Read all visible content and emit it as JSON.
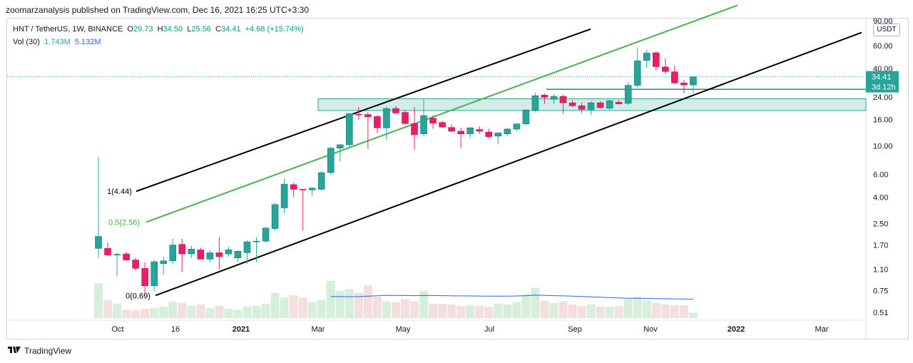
{
  "header": {
    "published_by": "zoomarzanalysis published on TradingView.com, Dec 16, 2021 16:25 UTC+3:30"
  },
  "legend": {
    "symbol": "HNT / TetherUS, 1W, BINANCE",
    "open_label": "O",
    "open": "29.73",
    "high_label": "H",
    "high": "34.50",
    "low_label": "L",
    "low": "25.56",
    "close_label": "C",
    "close": "34.41",
    "change": "+4.68 (+15.74%)",
    "vol_label": "Vol (30)",
    "vol_value": "1.743M",
    "vol_ma": "5.132M"
  },
  "price_axis": {
    "currency": "USDT",
    "last_price": "34.41",
    "countdown": "3d 12h"
  },
  "footer": {
    "brand": "TradingView"
  },
  "colors": {
    "up": "#26a69a",
    "down": "#ef5350",
    "down_body": "#e91e63",
    "channel_green": "#4caf50",
    "channel_black": "#000000",
    "zone_fill": "#b2dfdb",
    "vol_ma_line": "#2962ff"
  },
  "chart_data": {
    "type": "candlestick",
    "title": "HNT / TetherUS, 1W, BINANCE",
    "scale": "log",
    "ylim": [
      0.5,
      90
    ],
    "y_ticks": [
      "90.00",
      "60.00",
      "40.00",
      "24.00",
      "16.00",
      "10.00",
      "6.00",
      "4.00",
      "2.50",
      "1.70",
      "1.10",
      "0.75",
      "0.51"
    ],
    "x_ticks": [
      {
        "label": "Oct",
        "bold": false
      },
      {
        "label": "16",
        "bold": false
      },
      {
        "label": "2021",
        "bold": true
      },
      {
        "label": "Mar",
        "bold": false
      },
      {
        "label": "May",
        "bold": false
      },
      {
        "label": "Jul",
        "bold": false
      },
      {
        "label": "Sep",
        "bold": false
      },
      {
        "label": "Nov",
        "bold": false
      },
      {
        "label": "2022",
        "bold": true
      },
      {
        "label": "Mar",
        "bold": false
      }
    ],
    "candles": [
      {
        "o": 1.6,
        "h": 8.2,
        "l": 1.35,
        "c": 1.98
      },
      {
        "o": 1.6,
        "h": 1.78,
        "l": 1.4,
        "c": 1.42
      },
      {
        "o": 1.43,
        "h": 1.48,
        "l": 0.97,
        "c": 1.44
      },
      {
        "o": 1.45,
        "h": 1.5,
        "l": 1.28,
        "c": 1.3
      },
      {
        "o": 1.3,
        "h": 1.35,
        "l": 1.08,
        "c": 1.12
      },
      {
        "o": 1.12,
        "h": 1.25,
        "l": 0.69,
        "c": 0.82
      },
      {
        "o": 0.82,
        "h": 1.3,
        "l": 0.75,
        "c": 1.26
      },
      {
        "o": 1.22,
        "h": 1.38,
        "l": 1.0,
        "c": 1.28
      },
      {
        "o": 1.28,
        "h": 1.9,
        "l": 1.2,
        "c": 1.7
      },
      {
        "o": 1.72,
        "h": 1.9,
        "l": 1.05,
        "c": 1.45
      },
      {
        "o": 1.45,
        "h": 1.68,
        "l": 1.35,
        "c": 1.58
      },
      {
        "o": 1.56,
        "h": 1.62,
        "l": 1.38,
        "c": 1.32
      },
      {
        "o": 1.32,
        "h": 1.55,
        "l": 1.25,
        "c": 1.48
      },
      {
        "o": 1.48,
        "h": 1.95,
        "l": 1.1,
        "c": 1.38
      },
      {
        "o": 1.45,
        "h": 1.65,
        "l": 1.38,
        "c": 1.56
      },
      {
        "o": 1.35,
        "h": 1.55,
        "l": 1.25,
        "c": 1.52
      },
      {
        "o": 1.48,
        "h": 1.85,
        "l": 1.22,
        "c": 1.8
      },
      {
        "o": 1.8,
        "h": 1.95,
        "l": 1.25,
        "c": 1.82
      },
      {
        "o": 1.82,
        "h": 2.35,
        "l": 1.78,
        "c": 2.3
      },
      {
        "o": 2.28,
        "h": 3.6,
        "l": 2.2,
        "c": 3.5
      },
      {
        "o": 3.3,
        "h": 5.6,
        "l": 3.0,
        "c": 5.05
      },
      {
        "o": 5.0,
        "h": 5.2,
        "l": 4.0,
        "c": 4.6
      },
      {
        "o": 4.6,
        "h": 4.65,
        "l": 2.2,
        "c": 4.55
      },
      {
        "o": 4.55,
        "h": 4.8,
        "l": 4.1,
        "c": 4.7
      },
      {
        "o": 4.6,
        "h": 6.4,
        "l": 4.5,
        "c": 6.2
      },
      {
        "o": 6.2,
        "h": 9.8,
        "l": 6.0,
        "c": 9.6
      },
      {
        "o": 9.6,
        "h": 10.4,
        "l": 7.6,
        "c": 10.2
      },
      {
        "o": 10.2,
        "h": 18.0,
        "l": 9.8,
        "c": 17.8
      },
      {
        "o": 17.6,
        "h": 20.0,
        "l": 16.0,
        "c": 17.5
      },
      {
        "o": 17.5,
        "h": 18.2,
        "l": 9.5,
        "c": 16.8
      },
      {
        "o": 16.9,
        "h": 17.4,
        "l": 12.6,
        "c": 13.8
      },
      {
        "o": 13.8,
        "h": 20.2,
        "l": 11.0,
        "c": 19.5
      },
      {
        "o": 19.5,
        "h": 20.4,
        "l": 17.6,
        "c": 18.0
      },
      {
        "o": 18.2,
        "h": 19.0,
        "l": 14.6,
        "c": 14.9
      },
      {
        "o": 14.9,
        "h": 20.0,
        "l": 9.3,
        "c": 12.2
      },
      {
        "o": 12.4,
        "h": 23.0,
        "l": 11.8,
        "c": 17.2
      },
      {
        "o": 16.4,
        "h": 17.2,
        "l": 13.6,
        "c": 15.0
      },
      {
        "o": 15.2,
        "h": 15.6,
        "l": 13.8,
        "c": 14.0
      },
      {
        "o": 13.9,
        "h": 14.6,
        "l": 12.8,
        "c": 13.0
      },
      {
        "o": 13.0,
        "h": 13.8,
        "l": 9.6,
        "c": 12.4
      },
      {
        "o": 12.4,
        "h": 14.0,
        "l": 11.5,
        "c": 13.8
      },
      {
        "o": 13.4,
        "h": 14.2,
        "l": 12.4,
        "c": 13.0
      },
      {
        "o": 12.8,
        "h": 13.6,
        "l": 11.4,
        "c": 11.8
      },
      {
        "o": 11.9,
        "h": 12.8,
        "l": 10.4,
        "c": 12.6
      },
      {
        "o": 12.4,
        "h": 13.8,
        "l": 11.9,
        "c": 13.5
      },
      {
        "o": 13.5,
        "h": 15.0,
        "l": 13.0,
        "c": 14.8
      },
      {
        "o": 14.8,
        "h": 19.2,
        "l": 14.4,
        "c": 19.0
      },
      {
        "o": 19.0,
        "h": 25.8,
        "l": 18.2,
        "c": 24.5
      },
      {
        "o": 24.8,
        "h": 25.4,
        "l": 21.2,
        "c": 23.8
      },
      {
        "o": 23.0,
        "h": 25.2,
        "l": 21.2,
        "c": 24.2
      },
      {
        "o": 24.2,
        "h": 25.0,
        "l": 17.8,
        "c": 21.6
      },
      {
        "o": 21.6,
        "h": 22.6,
        "l": 20.0,
        "c": 20.5
      },
      {
        "o": 20.5,
        "h": 21.8,
        "l": 18.0,
        "c": 19.2
      },
      {
        "o": 19.1,
        "h": 22.2,
        "l": 17.4,
        "c": 21.6
      },
      {
        "o": 21.6,
        "h": 22.2,
        "l": 19.4,
        "c": 19.8
      },
      {
        "o": 19.6,
        "h": 22.8,
        "l": 19.0,
        "c": 22.4
      },
      {
        "o": 21.8,
        "h": 22.6,
        "l": 21.0,
        "c": 21.2
      },
      {
        "o": 21.4,
        "h": 31.2,
        "l": 20.8,
        "c": 29.5
      },
      {
        "o": 29.5,
        "h": 57.8,
        "l": 28.4,
        "c": 45.8
      },
      {
        "o": 46.0,
        "h": 55.4,
        "l": 40.5,
        "c": 52.5
      },
      {
        "o": 52.8,
        "h": 54.2,
        "l": 38.4,
        "c": 41.2
      },
      {
        "o": 41.0,
        "h": 47.8,
        "l": 36.0,
        "c": 37.8
      },
      {
        "o": 37.6,
        "h": 41.8,
        "l": 30.2,
        "c": 30.8
      },
      {
        "o": 30.8,
        "h": 32.6,
        "l": 25.6,
        "c": 29.7
      },
      {
        "o": 29.73,
        "h": 34.5,
        "l": 25.56,
        "c": 34.41
      }
    ],
    "volume": [
      0.46,
      0.24,
      0.19,
      0.11,
      0.1,
      0.12,
      0.13,
      0.15,
      0.22,
      0.2,
      0.16,
      0.18,
      0.13,
      0.16,
      0.12,
      0.11,
      0.15,
      0.16,
      0.19,
      0.33,
      0.27,
      0.3,
      0.27,
      0.21,
      0.24,
      0.49,
      0.36,
      0.38,
      0.33,
      0.43,
      0.28,
      0.22,
      0.21,
      0.25,
      0.22,
      0.36,
      0.19,
      0.19,
      0.18,
      0.16,
      0.17,
      0.16,
      0.15,
      0.19,
      0.18,
      0.21,
      0.32,
      0.4,
      0.23,
      0.2,
      0.22,
      0.18,
      0.16,
      0.18,
      0.15,
      0.15,
      0.16,
      0.25,
      0.28,
      0.23,
      0.2,
      0.18,
      0.17,
      0.17,
      0.07
    ],
    "volume_ma": [
      null,
      null,
      null,
      null,
      null,
      null,
      null,
      null,
      null,
      null,
      null,
      null,
      null,
      null,
      null,
      null,
      null,
      null,
      null,
      null,
      null,
      null,
      null,
      null,
      null,
      0.285,
      0.283,
      0.282,
      0.283,
      0.29,
      0.295,
      0.3,
      0.298,
      0.297,
      0.296,
      0.298,
      0.297,
      0.296,
      0.294,
      0.293,
      0.292,
      0.291,
      0.29,
      0.289,
      0.29,
      0.292,
      0.296,
      0.302,
      0.3,
      0.296,
      0.293,
      0.29,
      0.285,
      0.28,
      0.275,
      0.27,
      0.265,
      0.262,
      0.262,
      0.26,
      0.257,
      0.255,
      0.253,
      0.251,
      0.248
    ],
    "fib_channel": [
      {
        "label": "1(4.44)",
        "price": 4.44,
        "color": "#000000"
      },
      {
        "label": "0.5(2.56)",
        "price": 2.56,
        "color": "#4caf50"
      },
      {
        "label": "0(0.69)",
        "price": 0.69,
        "color": "#000000"
      }
    ],
    "zone": {
      "top": 23.2,
      "bottom": 18.8
    },
    "horizontal_line": 27.5
  }
}
